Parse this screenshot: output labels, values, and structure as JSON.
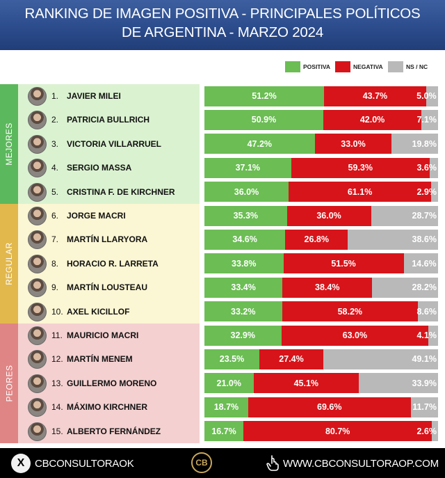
{
  "header": {
    "line1": "RANKING DE IMAGEN POSITIVA - PRINCIPALES POLÍTICOS",
    "line2": "DE ARGENTINA - MARZO 2024"
  },
  "legend": [
    {
      "label": "POSITIVA",
      "color": "#6bbd54"
    },
    {
      "label": "NEGATIVA",
      "color": "#d7141a"
    },
    {
      "label": "NS / NC",
      "color": "#b9b9b9"
    }
  ],
  "groups": [
    {
      "label": "MEJORES",
      "bg": "#daf2d0",
      "color": "#5cb85c"
    },
    {
      "label": "REGULAR",
      "bg": "#fbf6d3",
      "color": "#e2b84c"
    },
    {
      "label": "PEORES",
      "bg": "#f4d0d0",
      "color": "#e08585"
    }
  ],
  "chart_data": {
    "type": "bar",
    "title": "RANKING DE IMAGEN POSITIVA - PRINCIPALES POLÍTICOS DE ARGENTINA - MARZO 2024",
    "stacked": true,
    "orientation": "horizontal",
    "categories": [
      "JAVIER MILEI",
      "PATRICIA BULLRICH",
      "VICTORIA VILLARRUEL",
      "SERGIO MASSA",
      "CRISTINA F. DE KIRCHNER",
      "JORGE MACRI",
      "MARTÍN LLARYORA",
      "HORACIO R. LARRETA",
      "MARTÍN LOUSTEAU",
      "AXEL KICILLOF",
      "MAURICIO MACRI",
      "MARTÍN MENEM",
      "GUILLERMO MORENO",
      "MÁXIMO KIRCHNER",
      "ALBERTO FERNÁNDEZ"
    ],
    "ranks": [
      "1.",
      "2.",
      "3.",
      "4.",
      "5.",
      "6.",
      "7.",
      "8.",
      "9.",
      "10.",
      "11.",
      "12.",
      "13.",
      "14.",
      "15."
    ],
    "series": [
      {
        "name": "POSITIVA",
        "values": [
          51.2,
          50.9,
          47.2,
          37.1,
          36.0,
          35.3,
          34.6,
          33.8,
          33.4,
          33.2,
          32.9,
          23.5,
          21.0,
          18.7,
          16.7
        ]
      },
      {
        "name": "NEGATIVA",
        "values": [
          43.7,
          42.0,
          33.0,
          59.3,
          61.1,
          36.0,
          26.8,
          51.5,
          38.4,
          58.2,
          63.0,
          27.4,
          45.1,
          69.6,
          80.7
        ]
      },
      {
        "name": "NS / NC",
        "values": [
          5.0,
          7.1,
          19.8,
          3.6,
          2.9,
          28.7,
          38.6,
          14.6,
          28.2,
          8.6,
          4.1,
          49.1,
          33.9,
          11.7,
          2.6
        ]
      }
    ],
    "labels": {
      "POSITIVA": [
        "51.2%",
        "50.9%",
        "47.2%",
        "37.1%",
        "36.0%",
        "35.3%",
        "34.6%",
        "33.8%",
        "33.4%",
        "33.2%",
        "32.9%",
        "23.5%",
        "21.0%",
        "18.7%",
        "16.7%"
      ],
      "NEGATIVA": [
        "43.7%",
        "42.0%",
        "33.0%",
        "59.3%",
        "61.1%",
        "36.0%",
        "26.8%",
        "51.5%",
        "38.4%",
        "58.2%",
        "63.0%",
        "27.4%",
        "45.1%",
        "69.6%",
        "80.7%"
      ],
      "NS / NC": [
        "5.0%",
        "7.1%",
        "19.8%",
        "3.6%",
        "2.9%",
        "28.7%",
        "38.6%",
        "14.6%",
        "28.2%",
        "8.6%",
        "4.1%",
        "49.1%",
        "33.9%",
        "11.7%",
        "2.6%"
      ]
    },
    "xlim": [
      0,
      100
    ],
    "legend_position": "top-right"
  },
  "footer": {
    "handle": "CBCONSULTORAOK",
    "website": "WWW.CBCONSULTORAOP.COM",
    "x_icon": "X",
    "logo_icon": "CB"
  }
}
